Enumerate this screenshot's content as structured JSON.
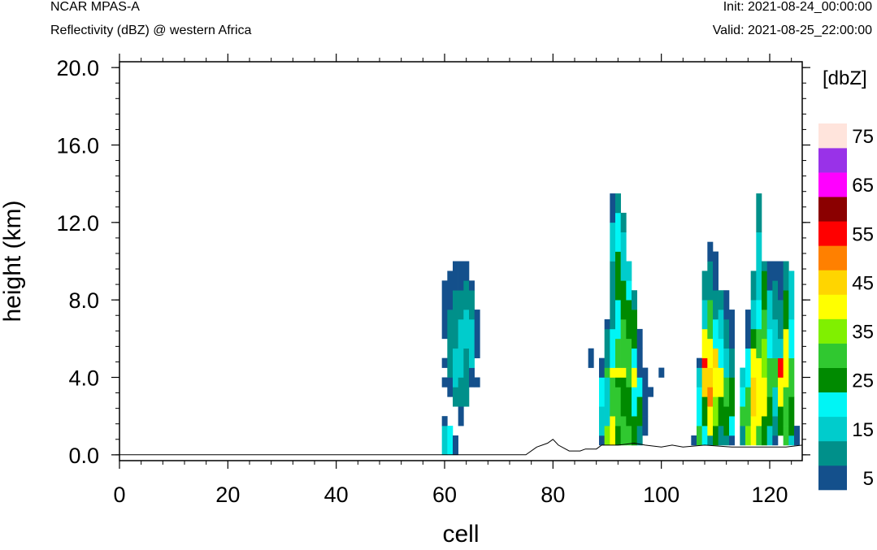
{
  "header": {
    "model": "NCAR MPAS-A",
    "variable": "Reflectivity (dBZ) @ western Africa",
    "init": "Init: 2021-08-24_00:00:00",
    "valid": "Valid: 2021-08-25_22:00:00"
  },
  "chart_data": {
    "type": "heatmap",
    "title": "Reflectivity (dBZ) @ western Africa",
    "xlabel": "cell",
    "ylabel": "height (km)",
    "xlim": [
      0,
      126
    ],
    "ylim": [
      -0.3,
      20.3
    ],
    "x_ticks": [
      0,
      20,
      40,
      60,
      80,
      100,
      120
    ],
    "x_tick_labels": [
      "0",
      "20",
      "40",
      "60",
      "80",
      "100",
      "120"
    ],
    "y_ticks": [
      0,
      4,
      8,
      12,
      16,
      20
    ],
    "y_tick_labels": [
      "0.0",
      "4.0",
      "8.0",
      "12.0",
      "16.0",
      "20.0"
    ],
    "grid": false,
    "colorbar": {
      "title": "[dbZ]",
      "levels": [
        5,
        10,
        15,
        20,
        25,
        30,
        35,
        40,
        45,
        50,
        55,
        60,
        65,
        70,
        75
      ],
      "labels": [
        "5",
        "15",
        "25",
        "35",
        "45",
        "55",
        "65",
        "75"
      ],
      "colors": [
        "#14508C",
        "#00908A",
        "#00CCCC",
        "#00F5F5",
        "#008A00",
        "#30C830",
        "#80F000",
        "#FFFF00",
        "#FFD500",
        "#FF8000",
        "#FF0000",
        "#8B0000",
        "#FF00FF",
        "#9932E8",
        "#FFE4DC"
      ]
    },
    "cell_size": {
      "dx_cells": 1,
      "dz_km": 0.5
    },
    "terrain": [
      [
        0,
        0.0
      ],
      [
        75,
        0.0
      ],
      [
        77,
        0.4
      ],
      [
        79,
        0.6
      ],
      [
        80,
        0.8
      ],
      [
        81,
        0.5
      ],
      [
        83,
        0.2
      ],
      [
        85,
        0.2
      ],
      [
        86,
        0.3
      ],
      [
        88,
        0.3
      ],
      [
        89,
        0.5
      ],
      [
        92,
        0.5
      ],
      [
        95,
        0.6
      ],
      [
        97,
        0.5
      ],
      [
        100,
        0.4
      ],
      [
        102,
        0.5
      ],
      [
        104,
        0.4
      ],
      [
        108,
        0.5
      ],
      [
        113,
        0.4
      ],
      [
        118,
        0.4
      ],
      [
        123,
        0.4
      ],
      [
        126,
        0.5
      ]
    ],
    "columns": [
      {
        "x": 60,
        "segments": [
          [
            0,
            1.5,
            15
          ],
          [
            1.5,
            2.0,
            5
          ],
          [
            3.5,
            4.0,
            5
          ],
          [
            4.5,
            5.0,
            5
          ],
          [
            6.0,
            9.0,
            5
          ]
        ]
      },
      {
        "x": 61,
        "segments": [
          [
            0,
            1.5,
            20
          ],
          [
            3.0,
            4.0,
            5
          ],
          [
            4.0,
            5.0,
            10
          ],
          [
            5.0,
            7.5,
            10
          ],
          [
            7.5,
            8.5,
            5
          ],
          [
            8.5,
            9.5,
            5
          ]
        ]
      },
      {
        "x": 62,
        "segments": [
          [
            0,
            1.0,
            5
          ],
          [
            2.5,
            3.5,
            10
          ],
          [
            3.5,
            5.5,
            15
          ],
          [
            5.5,
            7.0,
            10
          ],
          [
            7.0,
            8.5,
            10
          ],
          [
            8.5,
            10.0,
            5
          ]
        ]
      },
      {
        "x": 63,
        "segments": [
          [
            1.5,
            2.5,
            5
          ],
          [
            2.5,
            4.0,
            10
          ],
          [
            4.0,
            7.0,
            15
          ],
          [
            7.0,
            8.5,
            10
          ],
          [
            8.5,
            10.0,
            5
          ]
        ]
      },
      {
        "x": 64,
        "segments": [
          [
            2.5,
            3.5,
            10
          ],
          [
            3.5,
            5.5,
            10
          ],
          [
            5.5,
            7.5,
            15
          ],
          [
            7.5,
            9.0,
            10
          ],
          [
            9.0,
            10.0,
            5
          ]
        ]
      },
      {
        "x": 65,
        "segments": [
          [
            3.5,
            4.5,
            5
          ],
          [
            4.5,
            7.0,
            15
          ],
          [
            7.0,
            8.5,
            10
          ],
          [
            8.5,
            9.0,
            5
          ]
        ]
      },
      {
        "x": 66,
        "segments": [
          [
            3.5,
            4.0,
            5
          ],
          [
            5.0,
            7.5,
            5
          ]
        ]
      },
      {
        "x": 87,
        "segments": [
          [
            4.5,
            5.5,
            5
          ]
        ]
      },
      {
        "x": 89,
        "segments": [
          [
            0.5,
            1.0,
            5
          ],
          [
            1.0,
            2.5,
            15
          ],
          [
            2.5,
            4.0,
            20
          ],
          [
            4.0,
            5.0,
            5
          ]
        ]
      },
      {
        "x": 90,
        "segments": [
          [
            0.5,
            1.5,
            35
          ],
          [
            1.5,
            4.0,
            15
          ],
          [
            4.0,
            4.5,
            30
          ],
          [
            4.5,
            6.5,
            10
          ],
          [
            6.5,
            7.0,
            5
          ]
        ]
      },
      {
        "x": 91,
        "segments": [
          [
            0.5,
            2.0,
            40
          ],
          [
            2.0,
            4.0,
            30
          ],
          [
            4.0,
            4.5,
            40
          ],
          [
            4.5,
            6.5,
            20
          ],
          [
            6.5,
            10.0,
            10
          ],
          [
            10.0,
            12.0,
            15
          ],
          [
            12.0,
            13.5,
            5
          ]
        ]
      },
      {
        "x": 92,
        "segments": [
          [
            0.5,
            1.5,
            25
          ],
          [
            1.5,
            3.5,
            30
          ],
          [
            3.5,
            4.0,
            25
          ],
          [
            4.0,
            4.5,
            40
          ],
          [
            4.5,
            6.0,
            30
          ],
          [
            6.0,
            8.0,
            20
          ],
          [
            8.0,
            10.5,
            25
          ],
          [
            10.5,
            12.5,
            20
          ],
          [
            12.5,
            13.5,
            10
          ]
        ]
      },
      {
        "x": 93,
        "segments": [
          [
            0.5,
            2.0,
            30
          ],
          [
            2.0,
            4.0,
            25
          ],
          [
            4.0,
            4.5,
            40
          ],
          [
            4.5,
            7.0,
            30
          ],
          [
            7.0,
            9.0,
            25
          ],
          [
            9.0,
            11.5,
            15
          ],
          [
            11.5,
            12.5,
            10
          ]
        ]
      },
      {
        "x": 94,
        "segments": [
          [
            0.5,
            1.5,
            30
          ],
          [
            1.5,
            3.5,
            25
          ],
          [
            3.5,
            4.5,
            30
          ],
          [
            4.5,
            6.0,
            30
          ],
          [
            6.0,
            8.0,
            25
          ],
          [
            8.0,
            9.0,
            20
          ],
          [
            9.0,
            10.0,
            15
          ]
        ]
      },
      {
        "x": 95,
        "segments": [
          [
            0.5,
            2.0,
            25
          ],
          [
            2.0,
            3.5,
            20
          ],
          [
            3.5,
            4.5,
            40
          ],
          [
            4.5,
            5.5,
            20
          ],
          [
            5.5,
            7.5,
            25
          ],
          [
            7.5,
            8.5,
            10
          ]
        ]
      },
      {
        "x": 96,
        "segments": [
          [
            0.5,
            1.5,
            10
          ],
          [
            1.5,
            3.0,
            25
          ],
          [
            3.0,
            4.0,
            20
          ],
          [
            4.0,
            5.5,
            5
          ],
          [
            5.5,
            6.5,
            5
          ]
        ]
      },
      {
        "x": 97,
        "segments": [
          [
            1.0,
            2.0,
            5
          ],
          [
            2.0,
            4.5,
            5
          ]
        ]
      },
      {
        "x": 98,
        "segments": [
          [
            3.0,
            3.5,
            5
          ]
        ]
      },
      {
        "x": 100,
        "segments": [
          [
            4.0,
            4.5,
            5
          ]
        ]
      },
      {
        "x": 106,
        "segments": [
          [
            0.5,
            1.0,
            5
          ]
        ]
      },
      {
        "x": 107,
        "segments": [
          [
            0.5,
            1.5,
            30
          ],
          [
            1.5,
            3.5,
            20
          ],
          [
            3.5,
            4.5,
            15
          ],
          [
            4.5,
            5.0,
            5
          ]
        ]
      },
      {
        "x": 108,
        "segments": [
          [
            0.5,
            1.5,
            20
          ],
          [
            1.5,
            3.0,
            25
          ],
          [
            3.0,
            4.5,
            45
          ],
          [
            4.5,
            5.0,
            55
          ],
          [
            5.0,
            6.5,
            40
          ],
          [
            6.5,
            8.0,
            15
          ],
          [
            8.0,
            9.5,
            10
          ]
        ]
      },
      {
        "x": 109,
        "segments": [
          [
            0.5,
            1.0,
            10
          ],
          [
            1.0,
            2.5,
            40
          ],
          [
            2.5,
            3.5,
            50
          ],
          [
            3.5,
            4.5,
            45
          ],
          [
            4.5,
            6.0,
            40
          ],
          [
            6.0,
            8.0,
            30
          ],
          [
            8.0,
            10.0,
            10
          ],
          [
            10.0,
            11.0,
            5
          ]
        ]
      },
      {
        "x": 110,
        "segments": [
          [
            0.5,
            1.5,
            25
          ],
          [
            1.5,
            3.0,
            35
          ],
          [
            3.0,
            4.5,
            40
          ],
          [
            4.5,
            5.5,
            45
          ],
          [
            5.5,
            7.0,
            20
          ],
          [
            7.0,
            8.5,
            10
          ],
          [
            8.5,
            10.5,
            5
          ]
        ]
      },
      {
        "x": 111,
        "segments": [
          [
            0.5,
            1.5,
            10
          ],
          [
            1.5,
            3.0,
            25
          ],
          [
            3.0,
            4.5,
            40
          ],
          [
            4.5,
            6.0,
            20
          ],
          [
            6.0,
            7.5,
            15
          ],
          [
            7.5,
            8.5,
            10
          ]
        ]
      },
      {
        "x": 112,
        "segments": [
          [
            0.5,
            1.0,
            10
          ],
          [
            1.0,
            2.5,
            25
          ],
          [
            2.5,
            4.0,
            30
          ],
          [
            4.0,
            5.5,
            15
          ],
          [
            5.5,
            7.0,
            10
          ],
          [
            7.0,
            8.5,
            5
          ]
        ]
      },
      {
        "x": 113,
        "segments": [
          [
            0.5,
            1.0,
            5
          ],
          [
            1.0,
            2.0,
            20
          ],
          [
            2.0,
            4.0,
            25
          ],
          [
            4.0,
            5.5,
            10
          ],
          [
            5.5,
            7.5,
            5
          ]
        ]
      },
      {
        "x": 115,
        "segments": [
          [
            0.5,
            1.5,
            10
          ],
          [
            1.5,
            2.5,
            30
          ],
          [
            2.5,
            3.5,
            20
          ],
          [
            3.5,
            4.5,
            15
          ]
        ]
      },
      {
        "x": 116,
        "segments": [
          [
            0.5,
            1.5,
            35
          ],
          [
            1.5,
            3.5,
            30
          ],
          [
            3.5,
            5.5,
            20
          ],
          [
            5.5,
            7.5,
            5
          ]
        ]
      },
      {
        "x": 117,
        "segments": [
          [
            0.5,
            2.0,
            40
          ],
          [
            2.0,
            4.0,
            45
          ],
          [
            4.0,
            5.5,
            40
          ],
          [
            5.5,
            6.5,
            25
          ],
          [
            6.5,
            8.0,
            15
          ],
          [
            8.0,
            9.5,
            10
          ]
        ]
      },
      {
        "x": 118,
        "segments": [
          [
            0.5,
            1.5,
            30
          ],
          [
            1.5,
            3.0,
            40
          ],
          [
            3.0,
            5.0,
            40
          ],
          [
            5.0,
            6.5,
            30
          ],
          [
            6.5,
            8.0,
            20
          ],
          [
            8.0,
            11.5,
            15
          ],
          [
            11.5,
            13.5,
            10
          ]
        ]
      },
      {
        "x": 119,
        "segments": [
          [
            0.5,
            2.0,
            25
          ],
          [
            2.0,
            4.0,
            40
          ],
          [
            4.0,
            6.0,
            35
          ],
          [
            6.0,
            7.5,
            30
          ],
          [
            7.5,
            9.5,
            25
          ],
          [
            9.5,
            10.0,
            10
          ]
        ]
      },
      {
        "x": 120,
        "segments": [
          [
            0.5,
            1.5,
            15
          ],
          [
            1.5,
            3.0,
            25
          ],
          [
            3.0,
            5.0,
            30
          ],
          [
            5.0,
            6.5,
            20
          ],
          [
            6.5,
            8.5,
            15
          ],
          [
            8.5,
            10.0,
            5
          ]
        ]
      },
      {
        "x": 121,
        "segments": [
          [
            0.5,
            1.0,
            5
          ],
          [
            1.0,
            2.0,
            10
          ],
          [
            2.0,
            3.5,
            15
          ],
          [
            3.5,
            5.0,
            30
          ],
          [
            5.0,
            7.0,
            15
          ],
          [
            7.0,
            9.0,
            10
          ],
          [
            9.0,
            10.0,
            5
          ]
        ]
      },
      {
        "x": 122,
        "segments": [
          [
            1.0,
            2.5,
            25
          ],
          [
            2.5,
            4.0,
            40
          ],
          [
            4.0,
            5.0,
            55
          ],
          [
            5.0,
            6.0,
            15
          ],
          [
            6.0,
            8.0,
            10
          ],
          [
            8.0,
            10.0,
            5
          ]
        ]
      },
      {
        "x": 123,
        "segments": [
          [
            0.5,
            1.5,
            30
          ],
          [
            1.5,
            3.5,
            30
          ],
          [
            3.5,
            6.5,
            40
          ],
          [
            6.5,
            8.5,
            25
          ],
          [
            8.5,
            10.0,
            10
          ]
        ]
      },
      {
        "x": 124,
        "segments": [
          [
            0.5,
            1.0,
            15
          ],
          [
            1.0,
            3.0,
            25
          ],
          [
            3.0,
            5.0,
            30
          ],
          [
            5.0,
            7.0,
            20
          ],
          [
            7.0,
            9.5,
            15
          ]
        ]
      },
      {
        "x": 125,
        "segments": [
          [
            0.5,
            1.5,
            5
          ]
        ]
      }
    ]
  }
}
